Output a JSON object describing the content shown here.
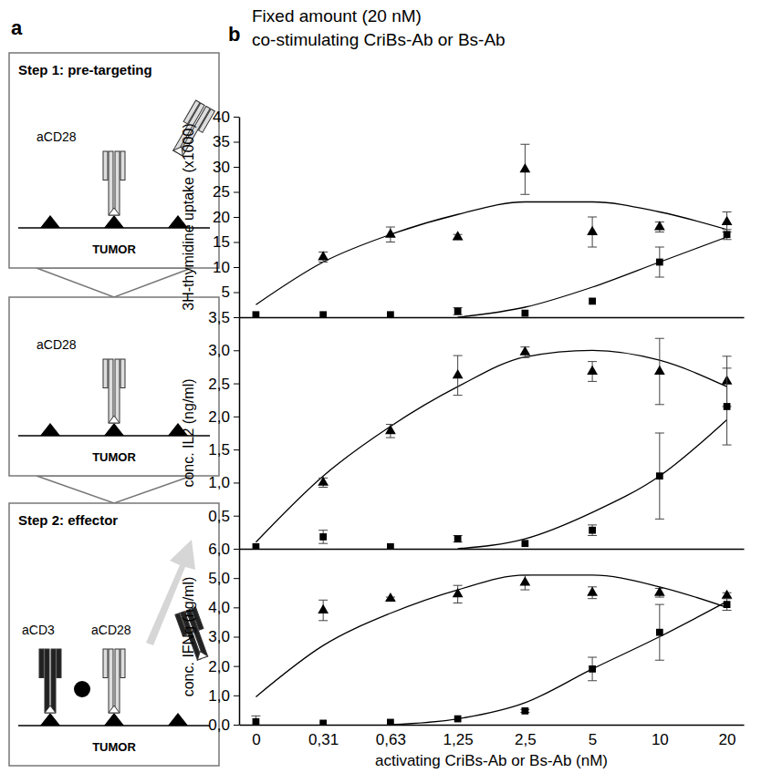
{
  "diagram": {
    "letter": "a",
    "panels": [
      {
        "title": "Step 1: pre-targeting",
        "labels": [
          "aCD28"
        ],
        "base": "TUMOR"
      },
      {
        "labels": [
          "aCD28"
        ],
        "base": "TUMOR"
      },
      {
        "title": "Step 2: effector",
        "labels": [
          "aCD3",
          "aCD28"
        ],
        "base": "TUMOR"
      }
    ]
  },
  "panel_b": {
    "letter": "b"
  },
  "chart_data": [
    {
      "type": "scatter",
      "title": "Fixed amount (20 nM)",
      "subtitle": "co-stimulating CriBs-Ab or Bs-Ab",
      "ylabel": "3H-thymidine uptake (x1000)",
      "categories": [
        "0",
        "0,31",
        "0,63",
        "1,25",
        "2,5",
        "5",
        "10",
        "20"
      ],
      "ylim": [
        0,
        40
      ],
      "yticks": [
        5,
        10,
        15,
        20,
        25,
        30,
        35,
        40
      ],
      "tick_labels": "y",
      "series": [
        {
          "type": "line",
          "color": "#000000",
          "line_style": "solid",
          "values": [
            2.5,
            11,
            16.5,
            20.5,
            23,
            23,
            21,
            17.5
          ]
        },
        {
          "type": "line",
          "color": "#000000",
          "line_style": "solid",
          "values": [
            null,
            null,
            null,
            0,
            2,
            6,
            11,
            16
          ]
        },
        {
          "type": "scatter",
          "marker": "triangle",
          "color": "#000000",
          "values": [
            null,
            12,
            16.5,
            16,
            29.5,
            17,
            18,
            19
          ],
          "errors": [
            null,
            1,
            1.5,
            0.5,
            5,
            3,
            1,
            2
          ]
        },
        {
          "type": "scatter",
          "marker": "square",
          "color": "#000000",
          "values": [
            0.5,
            0.5,
            0.5,
            1.2,
            0.8,
            3.2,
            11,
            16.5
          ],
          "errors": [
            null,
            null,
            null,
            0.7,
            null,
            null,
            3,
            1
          ]
        }
      ]
    },
    {
      "type": "scatter",
      "ylabel": "conc. IL2 (ng/ml)",
      "categories": [
        "0",
        "0,31",
        "0,63",
        "1,25",
        "2,5",
        "5",
        "10",
        "20"
      ],
      "ylim": [
        0,
        3.5
      ],
      "yticks": [
        {
          "value": 0.5,
          "label": "0,5"
        },
        {
          "value": 1,
          "label": "1,0"
        },
        {
          "value": 1.5,
          "label": "1,5"
        },
        {
          "value": 2,
          "label": "2,0"
        },
        {
          "value": 2.5,
          "label": "2,5"
        },
        {
          "value": 3,
          "label": "3,0"
        },
        {
          "value": 3.5,
          "label": "3,5"
        }
      ],
      "tick_labels": "y",
      "series": [
        {
          "type": "line",
          "color": "#000000",
          "line_style": "solid",
          "values": [
            0.1,
            1.1,
            1.85,
            2.45,
            2.9,
            3.0,
            2.85,
            2.45
          ]
        },
        {
          "type": "line",
          "color": "#000000",
          "line_style": "solid",
          "values": [
            null,
            null,
            null,
            0,
            0.15,
            0.55,
            1.1,
            1.95
          ]
        },
        {
          "type": "scatter",
          "marker": "triangle",
          "color": "#000000",
          "values": [
            null,
            1.0,
            1.78,
            2.62,
            2.97,
            2.68,
            2.68,
            2.53
          ],
          "errors": [
            null,
            0.07,
            0.1,
            0.3,
            0.08,
            0.15,
            0.5,
            0.38
          ]
        },
        {
          "type": "scatter",
          "marker": "square",
          "color": "#000000",
          "values": [
            0.03,
            0.18,
            0.03,
            0.15,
            0.08,
            0.28,
            1.1,
            2.15
          ],
          "errors": [
            null,
            0.1,
            null,
            0.05,
            null,
            0.08,
            0.65,
            0.58
          ]
        }
      ]
    },
    {
      "type": "scatter",
      "ylabel": "conc. IFNg (ng/ml)",
      "xlabel": "activating CriBs-Ab or Bs-Ab (nM)",
      "categories": [
        "0",
        "0,31",
        "0,63",
        "1,25",
        "2,5",
        "5",
        "10",
        "20"
      ],
      "ylim": [
        0,
        6
      ],
      "yticks": [
        {
          "value": 0,
          "label": "0,0"
        },
        {
          "value": 1,
          "label": "1,0"
        },
        {
          "value": 2,
          "label": "2,0"
        },
        {
          "value": 3,
          "label": "3,0"
        },
        {
          "value": 4,
          "label": "4,0"
        },
        {
          "value": 5,
          "label": "5,0"
        },
        {
          "value": 6,
          "label": "6,0"
        }
      ],
      "series": [
        {
          "type": "line",
          "color": "#000000",
          "line_style": "solid",
          "values": [
            0.95,
            2.7,
            3.8,
            4.6,
            5.1,
            5.1,
            4.7,
            4.0
          ]
        },
        {
          "type": "line",
          "color": "#000000",
          "line_style": "solid",
          "values": [
            null,
            null,
            0,
            0.2,
            0.75,
            1.9,
            3.0,
            4.2
          ]
        },
        {
          "type": "scatter",
          "marker": "triangle",
          "color": "#000000",
          "values": [
            null,
            3.9,
            4.3,
            4.45,
            4.85,
            4.5,
            4.5,
            4.4
          ],
          "errors": [
            null,
            0.35,
            0.05,
            0.3,
            0.25,
            0.2,
            0.15,
            0.1
          ]
        },
        {
          "type": "scatter",
          "marker": "square",
          "color": "#000000",
          "values": [
            0.1,
            0.05,
            0.08,
            0.2,
            0.47,
            1.9,
            3.15,
            4.1
          ],
          "errors": [
            0.2,
            null,
            null,
            null,
            0.05,
            0.4,
            0.95,
            0.2
          ]
        }
      ]
    }
  ]
}
